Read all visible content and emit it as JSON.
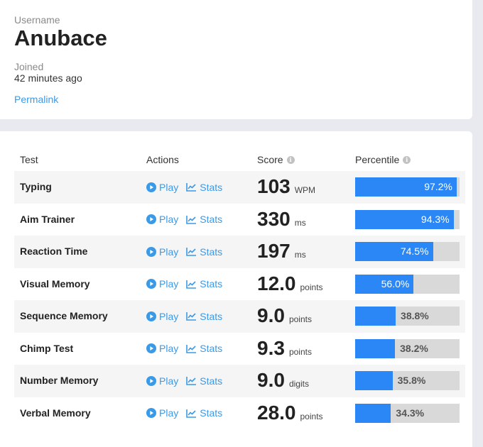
{
  "profile": {
    "username_label": "Username",
    "username": "Anubace",
    "joined_label": "Joined",
    "joined_value": "42 minutes ago",
    "permalink": "Permalink"
  },
  "table": {
    "headers": {
      "test": "Test",
      "actions": "Actions",
      "score": "Score",
      "percentile": "Percentile"
    },
    "play_label": "Play",
    "stats_label": "Stats",
    "rows": [
      {
        "test": "Typing",
        "score": "103",
        "unit": "WPM",
        "percentile": 97.2,
        "percentile_label": "97.2%"
      },
      {
        "test": "Aim Trainer",
        "score": "330",
        "unit": "ms",
        "percentile": 94.3,
        "percentile_label": "94.3%"
      },
      {
        "test": "Reaction Time",
        "score": "197",
        "unit": "ms",
        "percentile": 74.5,
        "percentile_label": "74.5%"
      },
      {
        "test": "Visual Memory",
        "score": "12.0",
        "unit": "points",
        "percentile": 56.0,
        "percentile_label": "56.0%"
      },
      {
        "test": "Sequence Memory",
        "score": "9.0",
        "unit": "points",
        "percentile": 38.8,
        "percentile_label": "38.8%"
      },
      {
        "test": "Chimp Test",
        "score": "9.3",
        "unit": "points",
        "percentile": 38.2,
        "percentile_label": "38.2%"
      },
      {
        "test": "Number Memory",
        "score": "9.0",
        "unit": "digits",
        "percentile": 35.8,
        "percentile_label": "35.8%"
      },
      {
        "test": "Verbal Memory",
        "score": "28.0",
        "unit": "points",
        "percentile": 34.3,
        "percentile_label": "34.3%"
      }
    ]
  },
  "colors": {
    "accent": "#3a9ae8",
    "bar_fill": "#2b87f6",
    "bar_bg": "#d9d9d9",
    "row_shade": "#f5f5f5"
  },
  "icons": {
    "play": "play-circle-icon",
    "stats": "line-chart-icon",
    "info": "info-icon"
  }
}
